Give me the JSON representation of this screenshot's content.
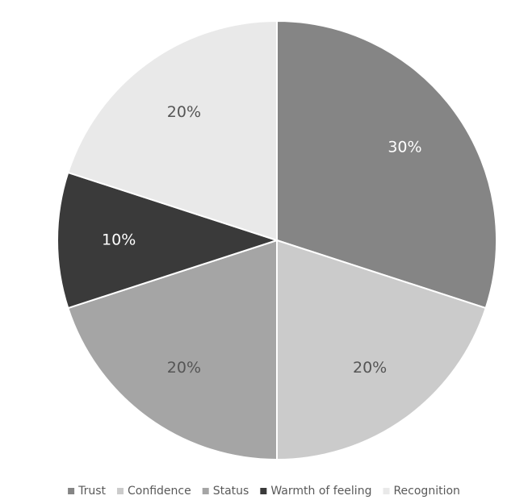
{
  "chart_data": {
    "type": "pie",
    "categories": [
      "Trust",
      "Confidence",
      "Status",
      "Warmth of feeling",
      "Recognition"
    ],
    "values": [
      30,
      20,
      20,
      10,
      20
    ],
    "data_labels": [
      "30%",
      "20%",
      "20%",
      "10%",
      "20%"
    ],
    "colors": [
      "#858585",
      "#cbcbcb",
      "#a5a5a5",
      "#3a3a3a",
      "#e9e9e9"
    ],
    "label_colors": [
      "#ffffff",
      "#555555",
      "#555555",
      "#ffffff",
      "#555555"
    ],
    "start_angle_deg": 0,
    "direction": "clockwise",
    "legend_position": "bottom"
  }
}
